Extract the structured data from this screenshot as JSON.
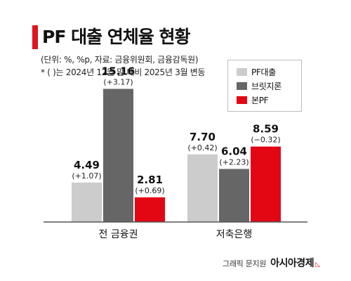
{
  "header": {
    "title": "PF 대출 연체율 현황",
    "note_line1": "(단위: %, %p, 자료: 금융위원회, 금융감독원)",
    "note_line2": "* ( )는 2024년 12월 말 대비 2025년 3월 변동"
  },
  "colors": {
    "accent": "#e0141e",
    "pf_loan": "#cccccc",
    "bridge_loan": "#666666",
    "main_pf": "#e30613",
    "axis": "#555555"
  },
  "credit": {
    "graphic": "그래픽 문지원",
    "brand": "아시아경제"
  },
  "chart_data": {
    "type": "bar",
    "categories": [
      "전 금융권",
      "저축은행"
    ],
    "series": [
      {
        "name": "PF대출",
        "values": [
          4.49,
          7.7
        ],
        "changes": [
          "(+1.07)",
          "(+0.42)"
        ],
        "labels": [
          "4.49",
          "7.70"
        ],
        "color": "#cccccc"
      },
      {
        "name": "브릿지론",
        "values": [
          15.16,
          6.04
        ],
        "changes": [
          "(+3.17)",
          "(+2.23)"
        ],
        "labels": [
          "15.16",
          "6.04"
        ],
        "color": "#666666"
      },
      {
        "name": "본PF",
        "values": [
          2.81,
          8.59
        ],
        "changes": [
          "(+0.69)",
          "(−0.32)"
        ],
        "labels": [
          "2.81",
          "8.59"
        ],
        "color": "#e30613"
      }
    ],
    "ylim": [
      0,
      16
    ],
    "grid": false,
    "legend": "top-right"
  }
}
